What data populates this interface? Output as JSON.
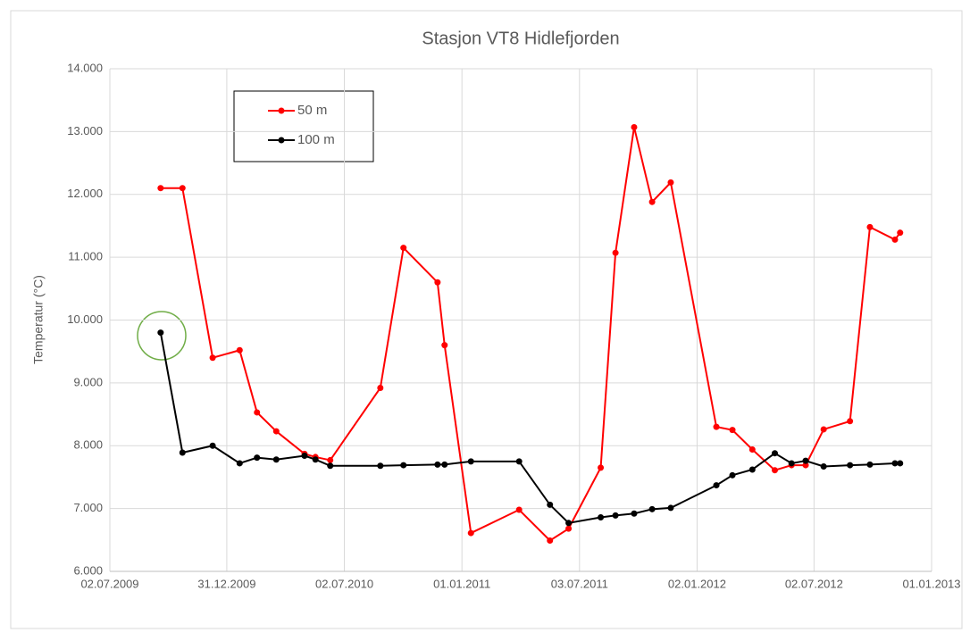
{
  "chart_data": {
    "type": "line",
    "title": "Stasjon VT8 Hidlefjorden",
    "y_label": "Temperatur (°C)",
    "x": [
      "19.09.2009",
      "23.10.2009",
      "09.12.2009",
      "20.01.2010",
      "16.02.2010",
      "18.03.2010",
      "01.05.2010",
      "18.05.2010",
      "10.06.2010",
      "27.08.2010",
      "02.10.2010",
      "24.11.2010",
      "05.12.2010",
      "15.01.2011",
      "31.03.2011",
      "18.05.2011",
      "16.06.2011",
      "05.08.2011",
      "28.08.2011",
      "26.09.2011",
      "24.10.2011",
      "22.11.2011",
      "01.02.2012",
      "26.02.2012",
      "28.03.2012",
      "02.05.2012",
      "28.05.2012",
      "19.06.2012",
      "17.07.2012",
      "27.08.2012",
      "27.09.2012",
      "05.11.2012",
      "13.11.2012"
    ],
    "series": [
      {
        "name": "50 m",
        "color": "#ff0000",
        "values": [
          12.1,
          12.1,
          9.4,
          9.52,
          8.53,
          8.23,
          7.87,
          7.82,
          7.77,
          8.92,
          11.15,
          10.6,
          9.6,
          6.61,
          6.98,
          6.49,
          6.68,
          7.65,
          11.07,
          13.07,
          11.88,
          12.19,
          8.3,
          8.25,
          7.94,
          7.61,
          7.69,
          7.69,
          8.26,
          8.39,
          11.48,
          11.28,
          11.39
        ]
      },
      {
        "name": "100 m",
        "color": "#000000",
        "values": [
          9.8,
          7.89,
          8.0,
          7.72,
          7.81,
          7.78,
          7.84,
          7.78,
          7.68,
          7.68,
          7.69,
          7.7,
          7.7,
          7.75,
          7.75,
          7.06,
          6.77,
          6.86,
          6.89,
          6.92,
          6.99,
          7.01,
          7.37,
          7.53,
          7.62,
          7.88,
          7.72,
          7.76,
          7.67,
          7.69,
          7.7,
          7.72,
          7.72
        ]
      }
    ],
    "xlim": [
      "02.07.2009",
      "01.01.2013"
    ],
    "xticks": [
      "02.07.2009",
      "31.12.2009",
      "02.07.2010",
      "01.01.2011",
      "03.07.2011",
      "02.01.2012",
      "02.07.2012",
      "01.01.2013"
    ],
    "ylim": [
      6,
      14
    ],
    "yticks": [
      {
        "value": 6,
        "label": "6.000"
      },
      {
        "value": 7,
        "label": "7.000"
      },
      {
        "value": 8,
        "label": "8.000"
      },
      {
        "value": 9,
        "label": "9.000"
      },
      {
        "value": 10,
        "label": "10.000"
      },
      {
        "value": 11,
        "label": "11.000"
      },
      {
        "value": 12,
        "label": "12.000"
      },
      {
        "value": 13,
        "label": "13.000"
      },
      {
        "value": 14,
        "label": "14.000"
      }
    ],
    "grid": true
  }
}
